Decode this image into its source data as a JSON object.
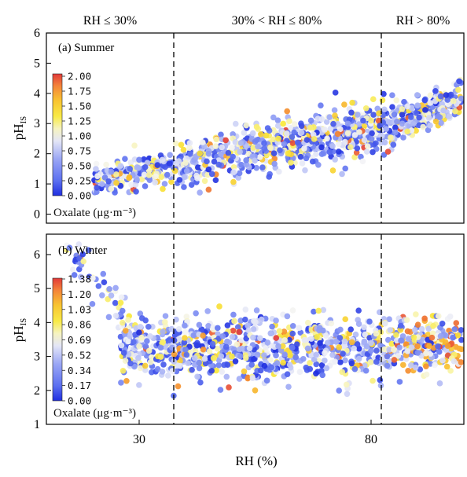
{
  "colors": {
    "cmap": [
      "#1f2ee0",
      "#5b6ff0",
      "#9aa6f5",
      "#d8dcf6",
      "#f4f4f6",
      "#f8f4a6",
      "#f8e83a",
      "#f8c030",
      "#f48a30",
      "#e23a3a"
    ]
  },
  "chart_data": [
    {
      "type": "scatter",
      "title": "(a) Summer",
      "xlabel": "",
      "ylabel": "pHIS",
      "xlim": [
        10,
        100
      ],
      "ylim": [
        -0.3,
        6
      ],
      "yticks": [
        0,
        1,
        2,
        3,
        4,
        5,
        6
      ],
      "xticks_shown": false,
      "vertical_lines": [
        30,
        80
      ],
      "region_labels": [
        "RH ≤ 30%",
        "30% < RH ≤ 80%",
        "RH > 80%"
      ],
      "colorbar": {
        "title": "Oxalate (μg·m⁻³)",
        "ticks": [
          "2.00",
          "1.75",
          "1.50",
          "1.25",
          "1.00",
          "0.75",
          "0.50",
          "0.25",
          "0.00"
        ],
        "min": 0,
        "max": 2.0
      },
      "trend": "pH increases roughly linearly with RH",
      "sample_points": [
        {
          "x": 22,
          "y": 1.0,
          "c": 0.5
        },
        {
          "x": 24,
          "y": 1.4,
          "c": 0.4
        },
        {
          "x": 26,
          "y": 1.6,
          "c": 0.6
        },
        {
          "x": 28,
          "y": 1.5,
          "c": 0.2
        },
        {
          "x": 30,
          "y": 1.8,
          "c": 0.3
        },
        {
          "x": 35,
          "y": 1.8,
          "c": 0.7
        },
        {
          "x": 40,
          "y": 1.7,
          "c": 1.0
        },
        {
          "x": 45,
          "y": 2.0,
          "c": 0.4
        },
        {
          "x": 50,
          "y": 2.2,
          "c": 0.9
        },
        {
          "x": 55,
          "y": 2.4,
          "c": 0.3
        },
        {
          "x": 60,
          "y": 2.5,
          "c": 1.3
        },
        {
          "x": 65,
          "y": 2.7,
          "c": 0.6
        },
        {
          "x": 70,
          "y": 2.8,
          "c": 0.8
        },
        {
          "x": 75,
          "y": 3.0,
          "c": 0.4
        },
        {
          "x": 80,
          "y": 3.1,
          "c": 1.2
        },
        {
          "x": 85,
          "y": 3.3,
          "c": 0.3
        },
        {
          "x": 90,
          "y": 3.6,
          "c": 0.5
        },
        {
          "x": 95,
          "y": 3.9,
          "c": 0.2
        },
        {
          "x": 99,
          "y": 4.4,
          "c": 0.1
        }
      ]
    },
    {
      "type": "scatter",
      "title": "(b) Winter",
      "xlabel": "RH (%)",
      "ylabel": "pHIS",
      "xlim": [
        10,
        100
      ],
      "ylim": [
        1,
        6.6
      ],
      "yticks": [
        1,
        2,
        3,
        4,
        5,
        6
      ],
      "xticks": [
        30,
        80
      ],
      "vertical_lines": [
        30,
        80
      ],
      "colorbar": {
        "title": "Oxalate (μg·m⁻³)",
        "ticks": [
          "1.38",
          "1.20",
          "1.03",
          "0.86",
          "0.69",
          "0.52",
          "0.34",
          "0.17",
          "0.00"
        ],
        "min": 0,
        "max": 1.38
      },
      "trend": "pH drops steeply below RH 30% then stays near 3",
      "sample_points": [
        {
          "x": 15,
          "y": 6.2,
          "c": 0.2
        },
        {
          "x": 17,
          "y": 6.3,
          "c": 0.5
        },
        {
          "x": 18,
          "y": 5.8,
          "c": 0.8
        },
        {
          "x": 20,
          "y": 5.3,
          "c": 0.6
        },
        {
          "x": 22,
          "y": 4.8,
          "c": 0.3
        },
        {
          "x": 25,
          "y": 4.2,
          "c": 0.5
        },
        {
          "x": 28,
          "y": 3.6,
          "c": 0.4
        },
        {
          "x": 30,
          "y": 3.3,
          "c": 0.7
        },
        {
          "x": 40,
          "y": 3.2,
          "c": 0.2
        },
        {
          "x": 50,
          "y": 3.0,
          "c": 0.9
        },
        {
          "x": 55,
          "y": 2.0,
          "c": 1.1
        },
        {
          "x": 60,
          "y": 3.3,
          "c": 0.3
        },
        {
          "x": 70,
          "y": 3.1,
          "c": 0.6
        },
        {
          "x": 80,
          "y": 3.4,
          "c": 0.4
        },
        {
          "x": 85,
          "y": 2.9,
          "c": 1.3
        },
        {
          "x": 90,
          "y": 3.3,
          "c": 1.2
        },
        {
          "x": 95,
          "y": 3.6,
          "c": 0.3
        },
        {
          "x": 98,
          "y": 3.8,
          "c": 0.2
        }
      ]
    }
  ]
}
